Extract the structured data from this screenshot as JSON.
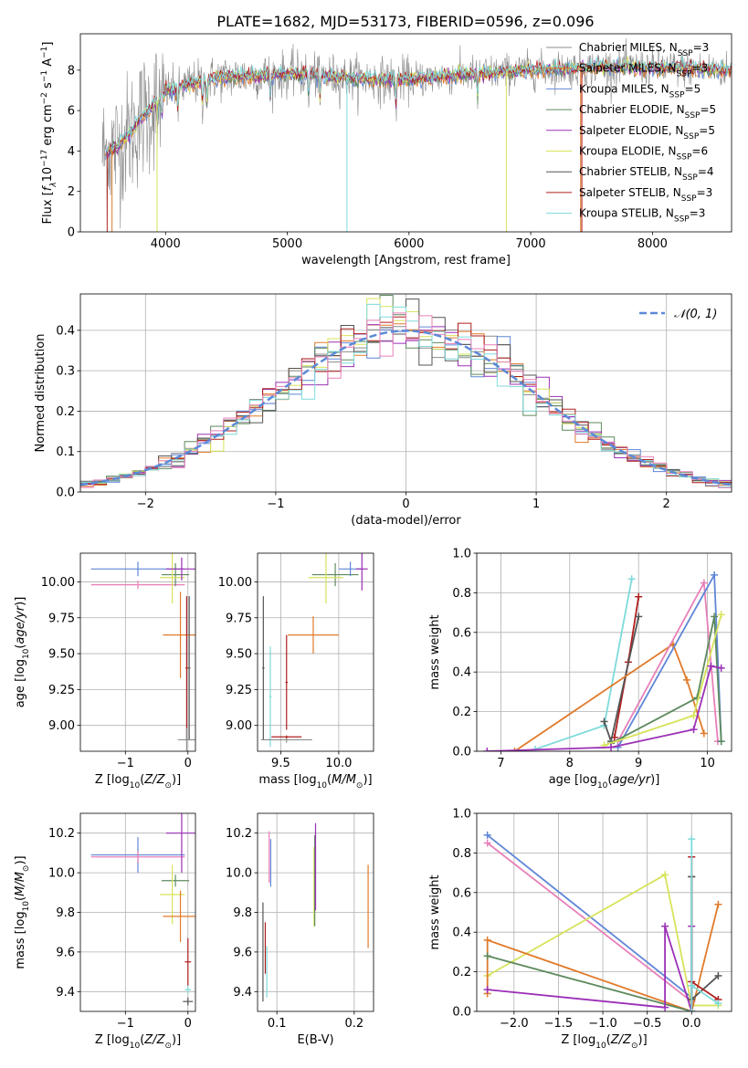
{
  "figure": {
    "title": "PLATE=1682, MJD=53173, FIBERID=0596, z=0.096"
  },
  "colors": {
    "Chabrier MILES": "#8c8c8c",
    "Salpeter MILES": "#e07a2a",
    "Kroupa MILES": "#5f86d6",
    "Chabrier ELODIE": "#5d8a5d",
    "Salpeter ELODIE": "#9b30b7",
    "Kroupa ELODIE": "#d7e35a",
    "Chabrier STELIB": "#555555",
    "Salpeter STELIB": "#b01f1f",
    "Kroupa STELIB": "#7fdada",
    "Kroupa pink": "#e87fb8",
    "normal": "#5b8ad8"
  },
  "chart_data": [
    {
      "id": "spectrum",
      "type": "line",
      "title": "PLATE=1682, MJD=53173, FIBERID=0596, z=0.096",
      "xlabel": "wavelength [Angstrom, rest frame]",
      "ylabel": "Flux [f_λ 10^-17 erg cm^-2 s^-1 A^-1]",
      "xlim": [
        3300,
        8650
      ],
      "ylim": [
        0,
        9.8
      ],
      "xticks": [
        4000,
        5000,
        6000,
        7000,
        8000
      ],
      "yticks": [
        0,
        2,
        4,
        6,
        8
      ],
      "grid": false,
      "legend_position": "right",
      "series": [
        {
          "name": "Chabrier MILES, N_SSP=3",
          "label_prefix": "Chabrier MILES, N",
          "sub": "SSP",
          "label_suffix": "=3"
        },
        {
          "name": "Salpeter MILES, N_SSP=3",
          "label_prefix": "Salpeter MILES, N",
          "sub": "SSP",
          "label_suffix": "=3"
        },
        {
          "name": "Kroupa MILES, N_SSP=5",
          "label_prefix": "Kroupa MILES, N",
          "sub": "SSP",
          "label_suffix": "=5"
        },
        {
          "name": "Chabrier ELODIE, N_SSP=5",
          "label_prefix": "Chabrier ELODIE, N",
          "sub": "SSP",
          "label_suffix": "=5"
        },
        {
          "name": "Salpeter ELODIE, N_SSP=5",
          "label_prefix": "Salpeter ELODIE, N",
          "sub": "SSP",
          "label_suffix": "=5"
        },
        {
          "name": "Kroupa ELODIE, N_SSP=6",
          "label_prefix": "Kroupa ELODIE, N",
          "sub": "SSP",
          "label_suffix": "=6"
        },
        {
          "name": "Chabrier STELIB, N_SSP=4",
          "label_prefix": "Chabrier STELIB, N",
          "sub": "SSP",
          "label_suffix": "=4"
        },
        {
          "name": "Salpeter STELIB, N_SSP=3",
          "label_prefix": "Salpeter STELIB, N",
          "sub": "SSP",
          "label_suffix": "=3"
        },
        {
          "name": "Kroupa STELIB, N_SSP=3",
          "label_prefix": "Kroupa STELIB, N",
          "sub": "SSP",
          "label_suffix": "=3"
        }
      ],
      "continuum": {
        "x": [
          3500,
          3600,
          3700,
          3800,
          3900,
          4000,
          4200,
          4400,
          4600,
          4800,
          5000,
          5200,
          5400,
          5600,
          5800,
          6000,
          6200,
          6400,
          6600,
          6800,
          7000,
          7200,
          7400,
          7600,
          7800,
          8000,
          8200,
          8400,
          8600
        ],
        "y": [
          3.9,
          4.2,
          4.8,
          5.6,
          6.3,
          6.9,
          7.3,
          7.6,
          7.7,
          7.75,
          7.8,
          7.8,
          7.65,
          7.6,
          7.5,
          7.55,
          7.65,
          7.75,
          7.85,
          7.9,
          8.0,
          8.05,
          8.1,
          8.15,
          8.15,
          8.1,
          8.1,
          8.05,
          8.0
        ]
      }
    },
    {
      "id": "residuals",
      "type": "bar",
      "xlabel": "(data-model)/error",
      "ylabel": "Normed distribution",
      "xlim": [
        -2.5,
        2.5
      ],
      "ylim": [
        0,
        0.49
      ],
      "xticks": [
        -2,
        -1,
        0,
        1,
        2
      ],
      "yticks": [
        0.0,
        0.1,
        0.2,
        0.3,
        0.4
      ],
      "grid": true,
      "legend_position": "top-right",
      "legend": "𝒩(0, 1)",
      "bin_width": 0.1
    },
    {
      "id": "age_vs_Z",
      "type": "scatter",
      "xlabel": "Z [log10(Z/Z⊙)]",
      "ylabel": "age [log10(age/yr)]",
      "xlim": [
        -1.72,
        0.12
      ],
      "ylim": [
        8.82,
        10.2
      ],
      "xticks": [
        -1,
        0
      ],
      "yticks": [
        9.0,
        9.25,
        9.5,
        9.75,
        10.0
      ],
      "grid": true,
      "points": [
        {
          "c": "Kroupa MILES",
          "x": -0.8,
          "y": 10.09,
          "xe": 0.75,
          "ye": 0.05
        },
        {
          "c": "Kroupa pink",
          "x": -0.8,
          "y": 9.98,
          "xe": 0.75,
          "ye": 0.03
        },
        {
          "c": "Chabrier ELODIE",
          "x": -0.2,
          "y": 10.05,
          "xe": 0.22,
          "ye": 0.08
        },
        {
          "c": "Kroupa ELODIE",
          "x": -0.25,
          "y": 10.03,
          "xe": 0.2,
          "ye": 0.18
        },
        {
          "c": "Salpeter ELODIE",
          "x": -0.1,
          "y": 10.09,
          "xe": 0.25,
          "ye": 0.08
        },
        {
          "c": "Salpeter MILES",
          "x": -0.12,
          "y": 9.63,
          "xe": 0.28,
          "ye": 0.3
        },
        {
          "c": "Chabrier STELIB",
          "x": 0.02,
          "y": 9.4,
          "xe": 0.02,
          "ye": 0.5
        },
        {
          "c": "Salpeter STELIB",
          "x": -0.02,
          "y": 9.4,
          "xe": 0.02,
          "ye": 0.5
        },
        {
          "c": "Chabrier MILES",
          "x": -0.02,
          "y": 8.9,
          "xe": 0.14,
          "ye": 0.08
        }
      ]
    },
    {
      "id": "age_vs_mass",
      "type": "scatter",
      "xlabel": "mass [log10(M/M⊙)]",
      "ylabel": "",
      "xlim": [
        9.3,
        10.3
      ],
      "ylim": [
        8.82,
        10.2
      ],
      "xticks": [
        9.5,
        10.0
      ],
      "yticks": [
        9.0,
        9.25,
        9.5,
        9.75,
        10.0
      ],
      "grid": true,
      "points": [
        {
          "c": "Chabrier STELIB",
          "x": 9.35,
          "y": 9.4,
          "xe": 0.01,
          "ye": 0.5
        },
        {
          "c": "Kroupa STELIB",
          "x": 9.41,
          "y": 9.2,
          "xe": 0.01,
          "ye": 0.35
        },
        {
          "c": "Salpeter STELIB",
          "x": 9.55,
          "y": 9.3,
          "xe": 0.01,
          "ye": 0.33
        },
        {
          "c": "Chabrier MILES",
          "x": 9.55,
          "y": 8.9,
          "xe": 0.22,
          "ye": 0.02
        },
        {
          "c": "Salpeter STELIB",
          "x": 9.55,
          "y": 8.92,
          "xe": 0.13,
          "ye": 0.01
        },
        {
          "c": "Salpeter MILES",
          "x": 9.78,
          "y": 9.63,
          "xe": 0.22,
          "ye": 0.13
        },
        {
          "c": "Chabrier ELODIE",
          "x": 9.97,
          "y": 10.05,
          "xe": 0.2,
          "ye": 0.08
        },
        {
          "c": "Kroupa ELODIE",
          "x": 9.89,
          "y": 10.03,
          "xe": 0.15,
          "ye": 0.18
        },
        {
          "c": "Kroupa MILES",
          "x": 10.1,
          "y": 10.09,
          "xe": 0.1,
          "ye": 0.05
        },
        {
          "c": "Salpeter ELODIE",
          "x": 10.2,
          "y": 10.09,
          "xe": 0.05,
          "ye": 0.15
        }
      ]
    },
    {
      "id": "mass_weight_vs_age",
      "type": "line",
      "xlabel": "age [log10(age/yr)]",
      "ylabel": "mass weight",
      "xlim": [
        6.65,
        10.35
      ],
      "ylim": [
        0,
        1.0
      ],
      "xticks": [
        7,
        8,
        9,
        10
      ],
      "yticks": [
        0.0,
        0.2,
        0.4,
        0.6,
        0.8,
        1.0
      ],
      "grid": true,
      "series": [
        {
          "c": "Kroupa STELIB",
          "x": [
            7.5,
            8.5,
            8.9
          ],
          "y": [
            0.01,
            0.13,
            0.87
          ]
        },
        {
          "c": "Salpeter STELIB",
          "x": [
            8.65,
            8.85,
            9.0
          ],
          "y": [
            0.07,
            0.45,
            0.78
          ]
        },
        {
          "c": "Chabrier STELIB",
          "x": [
            8.5,
            8.6,
            9.0
          ],
          "y": [
            0.15,
            0.05,
            0.68
          ]
        },
        {
          "c": "Salpeter MILES",
          "x": [
            7.2,
            9.5,
            9.7,
            9.95
          ],
          "y": [
            0.0,
            0.54,
            0.36,
            0.09
          ]
        },
        {
          "c": "Kroupa pink",
          "x": [
            8.7,
            9.95,
            10.15
          ],
          "y": [
            0.05,
            0.85,
            0.05
          ]
        },
        {
          "c": "Kroupa MILES",
          "x": [
            8.7,
            10.1,
            10.2
          ],
          "y": [
            0.02,
            0.89,
            0.05
          ]
        },
        {
          "c": "Chabrier ELODIE",
          "x": [
            8.6,
            9.85,
            10.1,
            10.2
          ],
          "y": [
            0.04,
            0.27,
            0.68,
            0.05
          ]
        },
        {
          "c": "Kroupa ELODIE",
          "x": [
            8.5,
            9.8,
            10.2
          ],
          "y": [
            0.03,
            0.18,
            0.69
          ]
        },
        {
          "c": "Salpeter ELODIE",
          "x": [
            6.8,
            8.6,
            9.8,
            10.05,
            10.2
          ],
          "y": [
            0.0,
            0.02,
            0.11,
            0.43,
            0.42
          ]
        }
      ]
    },
    {
      "id": "mass_vs_Z",
      "type": "scatter",
      "xlabel": "Z [log10(Z/Z⊙)]",
      "ylabel": "mass [log10(M/M⊙)]",
      "xlim": [
        -1.72,
        0.12
      ],
      "ylim": [
        9.3,
        10.3
      ],
      "xticks": [
        -1,
        0
      ],
      "yticks": [
        9.4,
        9.6,
        9.8,
        10.0,
        10.2
      ],
      "grid": true,
      "points": [
        {
          "c": "Kroupa MILES",
          "x": -0.8,
          "y": 10.09,
          "xe": 0.75,
          "ye": 0.09
        },
        {
          "c": "Kroupa pink",
          "x": -0.8,
          "y": 10.08,
          "xe": 0.75,
          "ye": 0.03
        },
        {
          "c": "Salpeter ELODIE",
          "x": -0.1,
          "y": 10.2,
          "xe": 0.25,
          "ye": 0.2
        },
        {
          "c": "Chabrier ELODIE",
          "x": -0.2,
          "y": 9.96,
          "xe": 0.22,
          "ye": 0.03
        },
        {
          "c": "Kroupa ELODIE",
          "x": -0.25,
          "y": 9.89,
          "xe": 0.2,
          "ye": 0.15
        },
        {
          "c": "Salpeter MILES",
          "x": -0.12,
          "y": 9.78,
          "xe": 0.28,
          "ye": 0.13
        },
        {
          "c": "Salpeter STELIB",
          "x": 0.0,
          "y": 9.55,
          "xe": 0.05,
          "ye": 0.12
        },
        {
          "c": "Kroupa STELIB",
          "x": 0.0,
          "y": 9.41,
          "xe": 0.05,
          "ye": 0.02
        },
        {
          "c": "Chabrier STELIB",
          "x": 0.0,
          "y": 9.35,
          "xe": 0.08,
          "ye": 0.02
        }
      ]
    },
    {
      "id": "mass_vs_ebv",
      "type": "scatter",
      "xlabel": "E(B-V)",
      "ylabel": "",
      "xlim": [
        0.075,
        0.225
      ],
      "ylim": [
        9.3,
        10.3
      ],
      "xticks": [
        0.1,
        0.2
      ],
      "yticks": [
        9.4,
        9.6,
        9.8,
        10.0,
        10.2
      ],
      "grid": true,
      "points": [
        {
          "c": "Chabrier STELIB",
          "x": 0.082,
          "y": 9.6,
          "xe": 0.0,
          "ye": 0.25
        },
        {
          "c": "Salpeter STELIB",
          "x": 0.085,
          "y": 9.62,
          "xe": 0.0,
          "ye": 0.13
        },
        {
          "c": "Kroupa STELIB",
          "x": 0.087,
          "y": 9.5,
          "xe": 0.0,
          "ye": 0.13
        },
        {
          "c": "Kroupa pink",
          "x": 0.09,
          "y": 10.08,
          "xe": 0.0,
          "ye": 0.13
        },
        {
          "c": "Kroupa MILES",
          "x": 0.092,
          "y": 10.05,
          "xe": 0.0,
          "ye": 0.12
        },
        {
          "c": "Kroupa ELODIE",
          "x": 0.148,
          "y": 9.93,
          "xe": 0.0,
          "ye": 0.2
        },
        {
          "c": "Chabrier ELODIE",
          "x": 0.149,
          "y": 9.96,
          "xe": 0.0,
          "ye": 0.23
        },
        {
          "c": "Salpeter ELODIE",
          "x": 0.15,
          "y": 10.03,
          "xe": 0.0,
          "ye": 0.22
        },
        {
          "c": "Salpeter MILES",
          "x": 0.218,
          "y": 9.83,
          "xe": 0.0,
          "ye": 0.21
        }
      ]
    },
    {
      "id": "mass_weight_vs_Z",
      "type": "line",
      "xlabel": "Z [log10(Z/Z⊙)]",
      "ylabel": "mass weight",
      "xlim": [
        -2.42,
        0.45
      ],
      "ylim": [
        0,
        1.0
      ],
      "xticks": [
        -2.0,
        -1.5,
        -1.0,
        -0.5,
        0.0
      ],
      "yticks": [
        0.0,
        0.2,
        0.4,
        0.6,
        0.8,
        1.0
      ],
      "grid": true,
      "series": [
        {
          "c": "Kroupa MILES",
          "x": [
            -2.3,
            0.0,
            0.0
          ],
          "y": [
            0.89,
            0.07,
            0.05
          ]
        },
        {
          "c": "Kroupa pink",
          "x": [
            -2.3,
            0.0
          ],
          "y": [
            0.85,
            0.05
          ]
        },
        {
          "c": "Kroupa ELODIE",
          "x": [
            -2.3,
            -0.3,
            0.0,
            0.3
          ],
          "y": [
            0.18,
            0.69,
            0.03,
            0.03
          ]
        },
        {
          "c": "Salpeter MILES",
          "x": [
            -2.3,
            -2.3,
            0.0,
            0.3
          ],
          "y": [
            0.09,
            0.36,
            0.0,
            0.54
          ]
        },
        {
          "c": "Chabrier ELODIE",
          "x": [
            -2.3,
            0.0,
            0.0
          ],
          "y": [
            0.28,
            0.0,
            0.68
          ]
        },
        {
          "c": "Salpeter ELODIE",
          "x": [
            -2.3,
            -0.3,
            -0.3,
            0.0,
            0.0
          ],
          "y": [
            0.11,
            0.02,
            0.43,
            0.0,
            0.43
          ]
        },
        {
          "c": "Chabrier STELIB",
          "x": [
            0.0,
            0.0,
            0.0,
            0.3
          ],
          "y": [
            0.68,
            0.0,
            0.06,
            0.18
          ]
        },
        {
          "c": "Salpeter STELIB",
          "x": [
            0.0,
            0.0,
            0.0,
            0.3
          ],
          "y": [
            0.78,
            0.0,
            0.15,
            0.06
          ]
        },
        {
          "c": "Kroupa STELIB",
          "x": [
            0.0,
            0.0,
            0.0,
            0.3
          ],
          "y": [
            0.87,
            0.0,
            0.13,
            0.04
          ]
        }
      ]
    }
  ]
}
